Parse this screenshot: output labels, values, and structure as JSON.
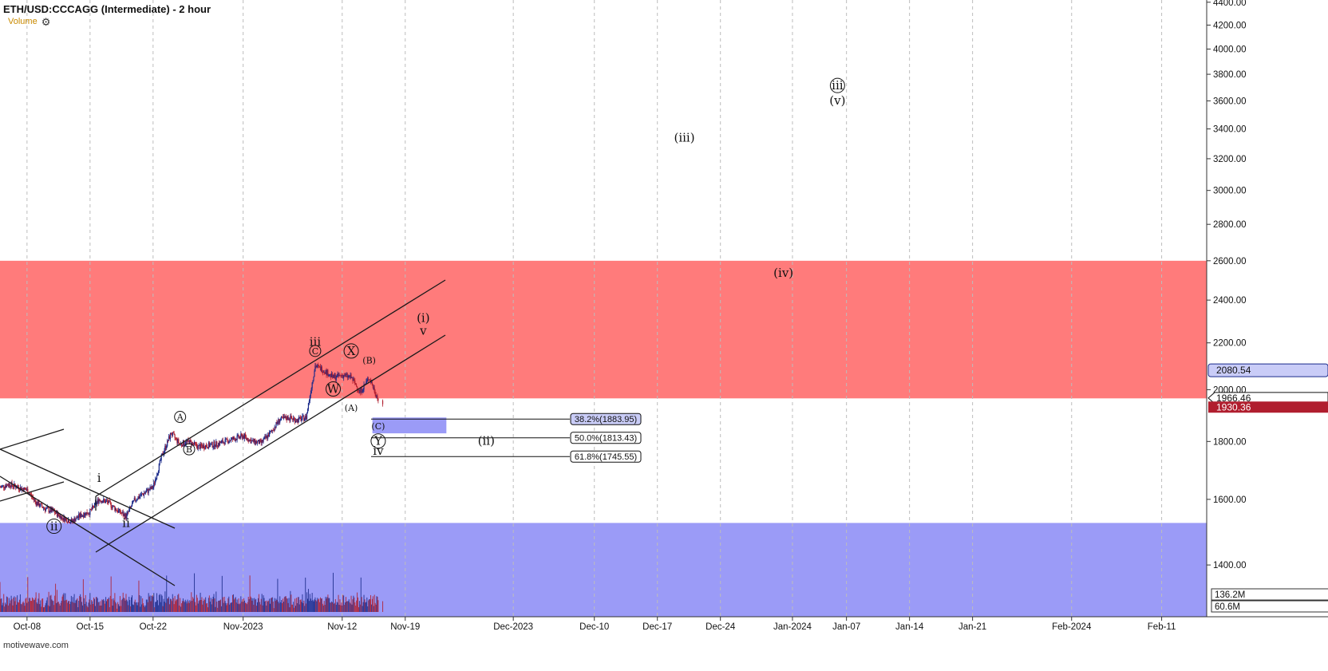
{
  "header": {
    "title": "ETH/USD:CCCAGG (Intermediate) - 2 hour",
    "volume_label": "Volume",
    "watermark": "motivewave.com"
  },
  "colors": {
    "resistance_zone": "#ff7b7b",
    "support_zone": "#9b9bf7",
    "target_box": "#9b9bf7",
    "bull_candle": "#1a2a8a",
    "bear_candle": "#b01e2e",
    "last_price_bg": "#b01e2e",
    "channel_line": "#1a1a1a"
  },
  "chart_data": {
    "type": "candlestick",
    "y_axis": {
      "scale": "log",
      "ylim": [
        1260,
        4420
      ],
      "ticks": [
        "4400.00",
        "4200.00",
        "4000.00",
        "3800.00",
        "3600.00",
        "3400.00",
        "3200.00",
        "3000.00",
        "2800.00",
        "2600.00",
        "2400.00",
        "2200.00",
        "2000.00",
        "1800.00",
        "1600.00",
        "1400.00"
      ]
    },
    "x_axis": {
      "range": [
        "2023-10-05",
        "2024-02-16"
      ],
      "ticks": [
        {
          "date": "2023-10-08",
          "label": "Oct-08"
        },
        {
          "date": "2023-10-15",
          "label": "Oct-15"
        },
        {
          "date": "2023-10-22",
          "label": "Oct-22"
        },
        {
          "date": "2023-11-01",
          "label": "Nov-2023"
        },
        {
          "date": "2023-11-12",
          "label": "Nov-12"
        },
        {
          "date": "2023-11-19",
          "label": "Nov-19"
        },
        {
          "date": "2023-12-01",
          "label": "Dec-2023"
        },
        {
          "date": "2023-12-10",
          "label": "Dec-10"
        },
        {
          "date": "2023-12-17",
          "label": "Dec-17"
        },
        {
          "date": "2023-12-24",
          "label": "Dec-24"
        },
        {
          "date": "2024-01-01",
          "label": "Jan-2024"
        },
        {
          "date": "2024-01-07",
          "label": "Jan-07"
        },
        {
          "date": "2024-01-14",
          "label": "Jan-14"
        },
        {
          "date": "2024-01-21",
          "label": "Jan-21"
        },
        {
          "date": "2024-02-01",
          "label": "Feb-2024"
        },
        {
          "date": "2024-02-11",
          "label": "Feb-11"
        }
      ]
    },
    "price_path": [
      {
        "date": "2023-10-05",
        "close": 1640
      },
      {
        "date": "2023-10-06",
        "close": 1650
      },
      {
        "date": "2023-10-07",
        "close": 1640
      },
      {
        "date": "2023-10-08",
        "close": 1630
      },
      {
        "date": "2023-10-09",
        "close": 1590
      },
      {
        "date": "2023-10-10",
        "close": 1570
      },
      {
        "date": "2023-10-11",
        "close": 1560
      },
      {
        "date": "2023-10-12",
        "close": 1540
      },
      {
        "date": "2023-10-13",
        "close": 1530
      },
      {
        "date": "2023-10-14",
        "close": 1550
      },
      {
        "date": "2023-10-15",
        "close": 1560
      },
      {
        "date": "2023-10-16",
        "close": 1600
      },
      {
        "date": "2023-10-17",
        "close": 1590
      },
      {
        "date": "2023-10-18",
        "close": 1565
      },
      {
        "date": "2023-10-19",
        "close": 1545
      },
      {
        "date": "2023-10-20",
        "close": 1600
      },
      {
        "date": "2023-10-21",
        "close": 1620
      },
      {
        "date": "2023-10-22",
        "close": 1640
      },
      {
        "date": "2023-10-23",
        "close": 1750
      },
      {
        "date": "2023-10-24",
        "close": 1830
      },
      {
        "date": "2023-10-25",
        "close": 1790
      },
      {
        "date": "2023-10-26",
        "close": 1800
      },
      {
        "date": "2023-10-27",
        "close": 1780
      },
      {
        "date": "2023-10-28",
        "close": 1785
      },
      {
        "date": "2023-10-29",
        "close": 1790
      },
      {
        "date": "2023-10-30",
        "close": 1800
      },
      {
        "date": "2023-10-31",
        "close": 1810
      },
      {
        "date": "2023-11-01",
        "close": 1820
      },
      {
        "date": "2023-11-02",
        "close": 1800
      },
      {
        "date": "2023-11-03",
        "close": 1795
      },
      {
        "date": "2023-11-04",
        "close": 1830
      },
      {
        "date": "2023-11-05",
        "close": 1880
      },
      {
        "date": "2023-11-06",
        "close": 1890
      },
      {
        "date": "2023-11-07",
        "close": 1880
      },
      {
        "date": "2023-11-08",
        "close": 1890
      },
      {
        "date": "2023-11-09",
        "close": 2100
      },
      {
        "date": "2023-11-10",
        "close": 2080
      },
      {
        "date": "2023-11-11",
        "close": 2050
      },
      {
        "date": "2023-11-12",
        "close": 2060
      },
      {
        "date": "2023-11-13",
        "close": 2050
      },
      {
        "date": "2023-11-14",
        "close": 1990
      },
      {
        "date": "2023-11-15",
        "close": 2050
      },
      {
        "date": "2023-11-16",
        "close": 1960
      },
      {
        "date": "2023-11-16",
        "close": 1930.36
      }
    ],
    "volume_axis": {
      "labels": [
        "136.2M",
        "60.6M"
      ]
    },
    "zones": [
      {
        "name": "resistance",
        "from": 1965,
        "to": 2600
      },
      {
        "name": "support",
        "from": 1260,
        "to": 1525
      }
    ],
    "target_box": {
      "from_date": "2023-11-15",
      "to_date": "2023-11-21",
      "low": 1830,
      "high": 1890
    },
    "fib_levels": [
      {
        "label": "38.2%(1883.95)",
        "value": 1883.95
      },
      {
        "label": "50.0%(1813.43)",
        "value": 1813.43
      },
      {
        "label": "61.8%(1745.55)",
        "value": 1745.55
      }
    ],
    "price_tags": [
      {
        "value": 2080.54,
        "label": "2080.54",
        "style": "boxed"
      },
      {
        "value": 1966.46,
        "label": "1966.46",
        "style": "pointer"
      },
      {
        "value": 1930.36,
        "label": "1930.36",
        "style": "last"
      }
    ],
    "wave_labels": [
      {
        "text": "ii",
        "circled": true,
        "date": "2023-10-11",
        "value": 1505
      },
      {
        "text": "i",
        "circled": false,
        "date": "2023-10-16",
        "value": 1660
      },
      {
        "text": "ii",
        "circled": false,
        "date": "2023-10-19",
        "value": 1515
      },
      {
        "text": "A",
        "circled": true,
        "date": "2023-10-25",
        "value": 1880
      },
      {
        "text": "B",
        "circled": true,
        "date": "2023-10-26",
        "value": 1760
      },
      {
        "text": "iii",
        "circled": false,
        "date": "2023-11-09",
        "value": 2190
      },
      {
        "text": "C",
        "circled": true,
        "date": "2023-11-09",
        "value": 2150
      },
      {
        "text": "X",
        "circled": true,
        "date": "2023-11-13",
        "value": 2150
      },
      {
        "text": "W",
        "circled": true,
        "date": "2023-11-11",
        "value": 1990
      },
      {
        "text": "(B)",
        "circled": false,
        "date": "2023-11-15",
        "value": 2110
      },
      {
        "text": "(A)",
        "circled": false,
        "date": "2023-11-13",
        "value": 1915
      },
      {
        "text": "(C)",
        "circled": false,
        "date": "2023-11-16",
        "value": 1845
      },
      {
        "text": "Y",
        "circled": true,
        "date": "2023-11-16",
        "value": 1790
      },
      {
        "text": "iv",
        "circled": false,
        "date": "2023-11-16",
        "value": 1755
      },
      {
        "text": "(i)",
        "circled": false,
        "date": "2023-11-21",
        "value": 2300
      },
      {
        "text": "v",
        "circled": false,
        "date": "2023-11-21",
        "value": 2240
      },
      {
        "text": "(ii)",
        "circled": false,
        "date": "2023-11-28",
        "value": 1790
      },
      {
        "text": "(iii)",
        "circled": false,
        "date": "2023-12-20",
        "value": 3320
      },
      {
        "text": "(iv)",
        "circled": false,
        "date": "2023-12-31",
        "value": 2520
      },
      {
        "text": "iii",
        "circled": true,
        "date": "2024-01-06",
        "value": 3690
      },
      {
        "text": "(v)",
        "circled": false,
        "date": "2024-01-06",
        "value": 3580
      }
    ]
  }
}
